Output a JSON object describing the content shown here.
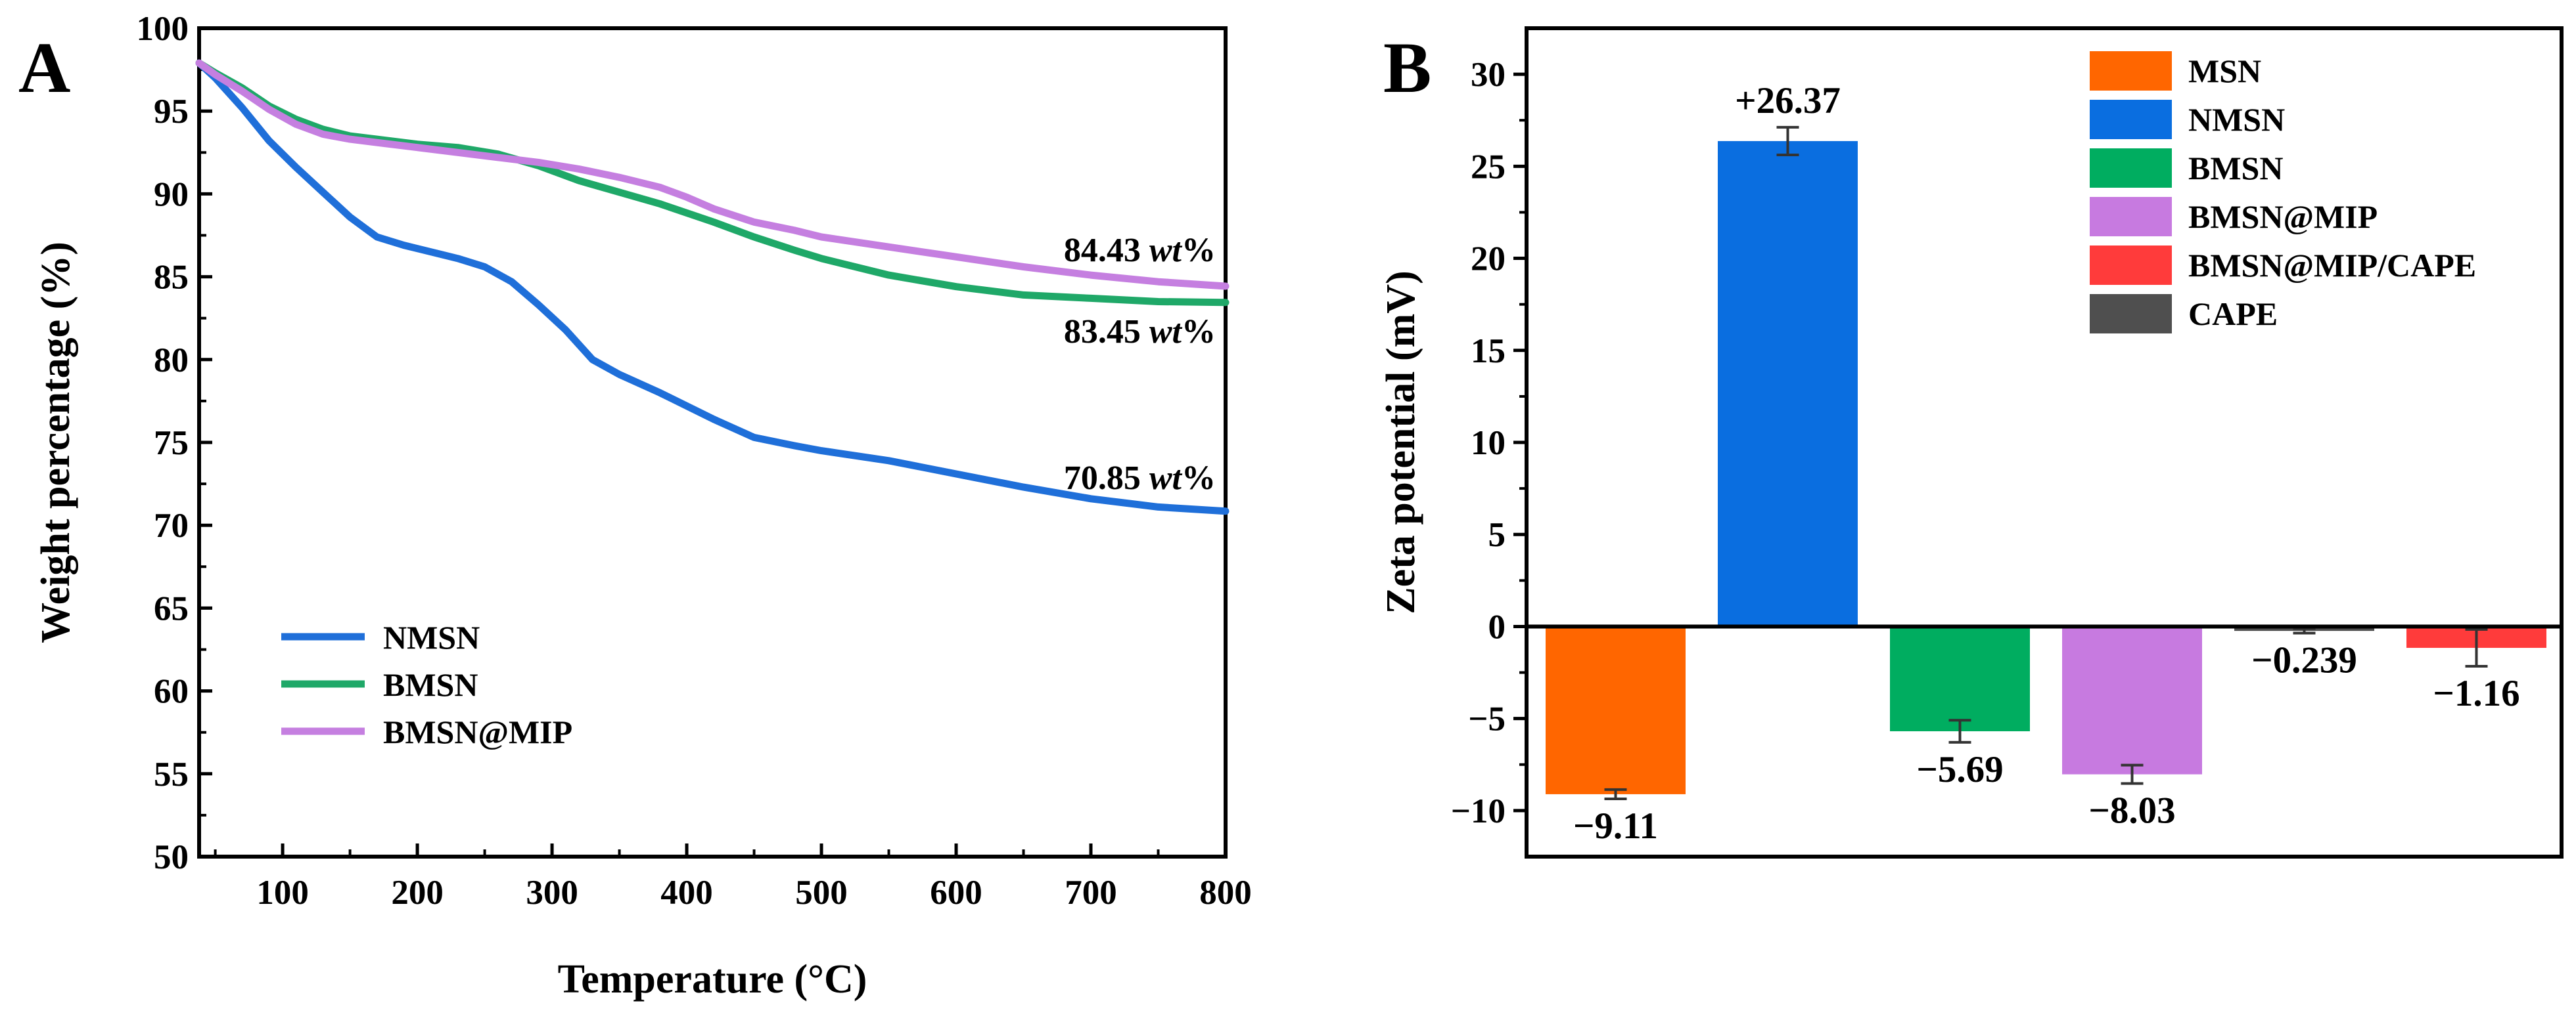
{
  "chart_data": [
    {
      "panel_label": "A",
      "type": "line",
      "xlabel": "Temperature (°C)",
      "ylabel": "Weight percentage (%)",
      "xlim": [
        38,
        800
      ],
      "ylim": [
        50,
        100
      ],
      "xticks": [
        "100",
        "200",
        "300",
        "400",
        "500",
        "600",
        "700",
        "800"
      ],
      "yticks": [
        "50",
        "55",
        "60",
        "65",
        "70",
        "75",
        "80",
        "85",
        "90",
        "95",
        "100"
      ],
      "legend_position": "lower-left",
      "series": [
        {
          "name": "NMSN",
          "color": "#1f6fd9",
          "x": [
            38,
            50,
            70,
            90,
            110,
            130,
            150,
            170,
            190,
            210,
            230,
            250,
            270,
            290,
            310,
            330,
            350,
            380,
            420,
            450,
            480,
            500,
            550,
            600,
            650,
            700,
            750,
            800
          ],
          "y": [
            97.9,
            97.0,
            95.2,
            93.2,
            91.6,
            90.1,
            88.6,
            87.4,
            86.9,
            86.5,
            86.1,
            85.6,
            84.7,
            83.3,
            81.8,
            80.0,
            79.1,
            78.0,
            76.4,
            75.3,
            74.8,
            74.5,
            73.9,
            73.1,
            72.3,
            71.6,
            71.1,
            70.85
          ]
        },
        {
          "name": "BMSN",
          "color": "#1fa868",
          "x": [
            38,
            50,
            70,
            90,
            110,
            130,
            150,
            170,
            200,
            230,
            260,
            290,
            320,
            350,
            380,
            420,
            450,
            480,
            500,
            550,
            600,
            650,
            700,
            750,
            800
          ],
          "y": [
            97.9,
            97.3,
            96.4,
            95.3,
            94.5,
            93.9,
            93.5,
            93.3,
            93.0,
            92.8,
            92.4,
            91.7,
            90.8,
            90.1,
            89.4,
            88.3,
            87.4,
            86.6,
            86.1,
            85.1,
            84.4,
            83.9,
            83.7,
            83.5,
            83.45
          ]
        },
        {
          "name": "BMSN@MIP",
          "color": "#c57fe0",
          "x": [
            38,
            50,
            70,
            90,
            110,
            130,
            150,
            170,
            200,
            230,
            260,
            290,
            320,
            350,
            380,
            400,
            420,
            450,
            480,
            500,
            550,
            600,
            650,
            700,
            750,
            800
          ],
          "y": [
            97.9,
            97.2,
            96.2,
            95.1,
            94.2,
            93.6,
            93.3,
            93.1,
            92.8,
            92.5,
            92.2,
            91.9,
            91.5,
            91.0,
            90.4,
            89.8,
            89.1,
            88.3,
            87.8,
            87.4,
            86.8,
            86.2,
            85.6,
            85.1,
            84.7,
            84.43
          ]
        }
      ],
      "annotations": [
        {
          "value": "84.43",
          "unit": "wt",
          "suffix": "%"
        },
        {
          "value": "83.45",
          "unit": "wt",
          "suffix": "%"
        },
        {
          "value": "70.85",
          "unit": "wt",
          "suffix": "%"
        }
      ]
    },
    {
      "panel_label": "B",
      "type": "bar",
      "ylabel": "Zeta potential (mV)",
      "ylim": [
        -12.5,
        32.5
      ],
      "yticks": [
        "−10",
        "−5",
        "0",
        "5",
        "10",
        "15",
        "20",
        "25",
        "30"
      ],
      "legend_position": "top-right",
      "categories": [
        "MSN",
        "NMSN",
        "BMSN",
        "BMSN@MIP",
        "BMSN@MIP/CAPE",
        "CAPE"
      ],
      "bars": [
        {
          "name": "MSN",
          "value": -9.11,
          "error": 0.25,
          "color": "#ff6600",
          "label": "−9.11"
        },
        {
          "name": "NMSN",
          "value": 26.37,
          "error": 0.75,
          "color": "#0a6ee0",
          "label": "+26.37"
        },
        {
          "name": "BMSN",
          "value": -5.69,
          "error": 0.6,
          "color": "#00ad60",
          "label": "−5.69"
        },
        {
          "name": "BMSN@MIP",
          "value": -8.03,
          "error": 0.5,
          "color": "#c77ae0",
          "label": "−8.03"
        },
        {
          "name": "CAPE",
          "value": -0.239,
          "error": 0.12,
          "color": "#4f4f4f",
          "label": "−0.239"
        },
        {
          "name": "BMSN@MIP/CAPE",
          "value": -1.16,
          "error": 1.0,
          "color": "#ff3b3b",
          "label": "−1.16"
        }
      ],
      "legend": [
        {
          "name": "MSN",
          "color": "#ff6600"
        },
        {
          "name": "NMSN",
          "color": "#0a6ee0"
        },
        {
          "name": "BMSN",
          "color": "#00ad60"
        },
        {
          "name": "BMSN@MIP",
          "color": "#c77ae0"
        },
        {
          "name": "BMSN@MIP/CAPE",
          "color": "#ff3b3b"
        },
        {
          "name": "CAPE",
          "color": "#4f4f4f"
        }
      ]
    }
  ]
}
